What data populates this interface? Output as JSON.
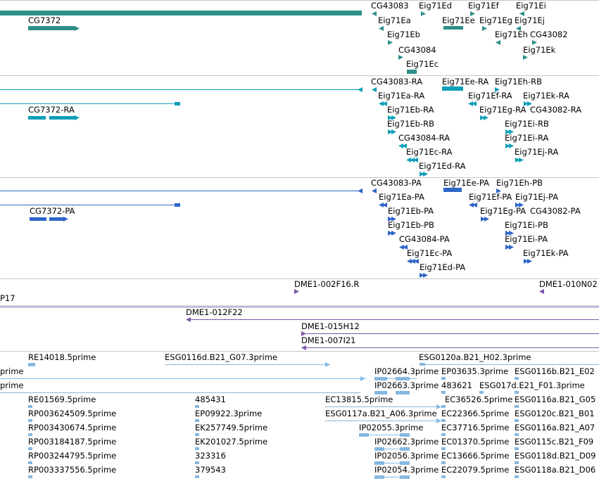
{
  "colors": {
    "gene": "#2e8f88",
    "transcript": "#0f9fb8",
    "protein": "#2e65c8",
    "bac": "#7b58a8",
    "cdna": "#86b8e0",
    "divider": "#c8c8c8"
  },
  "tracks": {
    "genes": {
      "labels": [
        "CG43083",
        "Eig71Ed",
        "Eig71Ef",
        "Eig71Ei",
        "CG7372",
        "Eig71Ea",
        "Eig71Ee",
        "Eig71Eg",
        "Eig71Ej",
        "Eig71Eb",
        "Eig71Eh",
        "CG43082",
        "CG43084",
        "Eig71Ek",
        "Eig71Ec"
      ]
    },
    "transcripts": {
      "labels": [
        "CG43083-RA",
        "Eig71Ee-RA",
        "Eig71Eh-RB",
        "Eig71Ea-RA",
        "Eig71Ef-RA",
        "Eig71Ek-RA",
        "CG7372-RA",
        "Eig71Eb-RA",
        "Eig71Eg-RA",
        "CG43082-RA",
        "Eig71Eb-RB",
        "Eig71Ei-RB",
        "CG43084-RA",
        "Eig71Ei-RA",
        "Eig71Ec-RA",
        "Eig71Ej-RA",
        "Eig71Ed-RA"
      ]
    },
    "proteins": {
      "labels": [
        "CG43083-PA",
        "Eig71Ee-PA",
        "Eig71Eh-PB",
        "Eig71Ea-PA",
        "Eig71Ef-PA",
        "Eig71Ej-PA",
        "CG7372-PA",
        "Eig71Eb-PA",
        "Eig71Eg-PA",
        "CG43082-PA",
        "Eig71Eb-PB",
        "Eig71Ei-PB",
        "CG43084-PA",
        "Eig71Ei-PA",
        "Eig71Ec-PA",
        "Eig71Ek-PA",
        "Eig71Ed-PA"
      ]
    },
    "bac": {
      "labels": [
        "DME1-002F16.R",
        "DME1-010N02",
        "P17",
        "DME1-012F22",
        "DME1-015H12",
        "DME1-007I21"
      ]
    },
    "cdna": {
      "labels": [
        "RE14018.5prime",
        "ESG0116d.B21_G07.3prime",
        "ESG0120a.B21_H02.3prime",
        "prime",
        "IP02664.3prime",
        "EP03635.3prime",
        "ESG0116b.B21_E02",
        "prime",
        "IP02663.3prime",
        "483621",
        "ESG017d.E21_F01.3prime",
        "RE01569.5prime",
        "485431",
        "EC13815.5prime",
        "EC36526.5prime",
        "ESG0116a.B21_G05",
        "RP003624509.5prime",
        "EP09922.3prime",
        "ESG0117a.B21_A06.3prime",
        "EC22366.5prime",
        "ESG0120c.B21_B01",
        "RP003430674.5prime",
        "EK257749.5prime",
        "IP02055.3prime",
        "EC37716.5prime",
        "ESG0116a.B21_A07",
        "RP003184187.5prime",
        "EK201027.5prime",
        "IP02662.3prime",
        "EC01370.5prime",
        "ESG0115c.B21_F09",
        "RP003244795.5prime",
        "323316",
        "IP02056.3prime",
        "EC13666.5prime",
        "ESG0118d.B21_D09",
        "RP003337556.5prime",
        "379543",
        "IP02054.3prime",
        "EC22079.5prime",
        "ESG0118a.B21_D06"
      ]
    }
  }
}
